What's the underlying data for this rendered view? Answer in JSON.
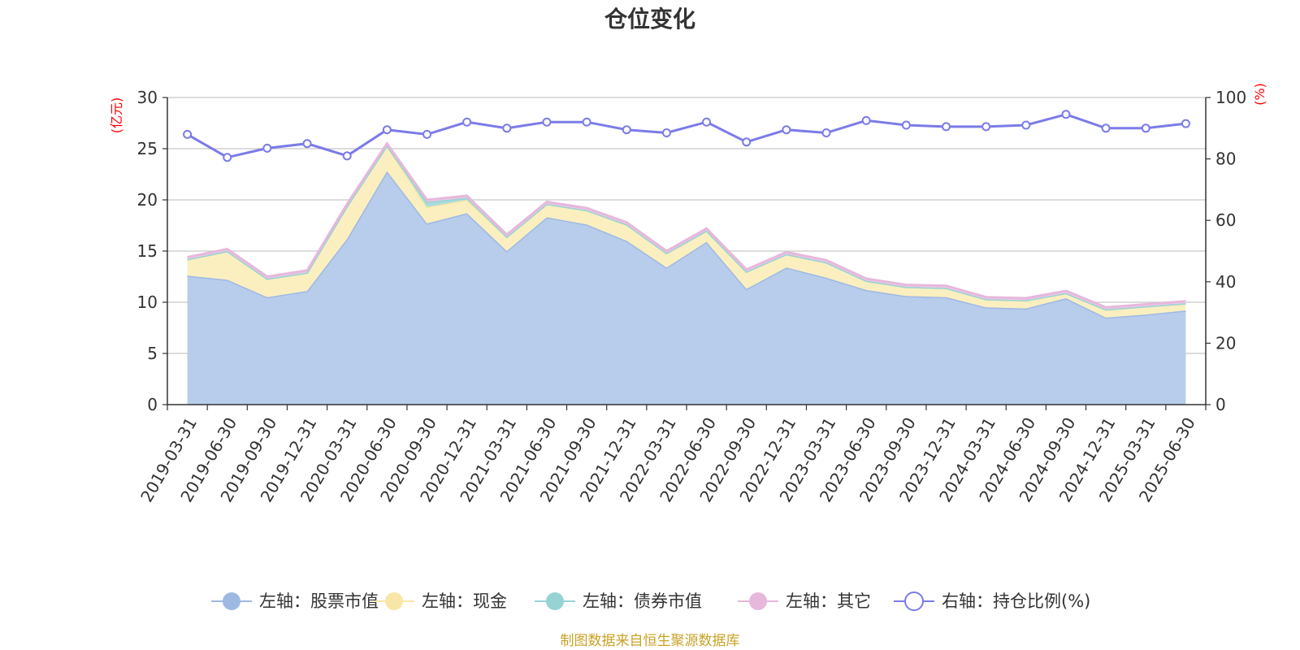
{
  "chart_data": {
    "type": "area",
    "title": "仓位变化",
    "source": "制图数据来自恒生聚源数据库",
    "y_left_unit": "(亿元)",
    "y_right_unit": "(%)",
    "y_left_lim": [
      0,
      30
    ],
    "y_left_ticks": [
      "0",
      "5",
      "10",
      "15",
      "20",
      "25",
      "30"
    ],
    "y_right_lim": [
      0,
      100
    ],
    "y_right_ticks": [
      "0",
      "20",
      "40",
      "60",
      "80",
      "100"
    ],
    "unit_color": "#ff0000",
    "categories": [
      "2019-03-31",
      "2019-06-30",
      "2019-09-30",
      "2019-12-31",
      "2020-03-31",
      "2020-06-30",
      "2020-09-30",
      "2020-12-31",
      "2021-03-31",
      "2021-06-30",
      "2021-09-30",
      "2021-12-31",
      "2022-03-31",
      "2022-06-30",
      "2022-09-30",
      "2022-12-31",
      "2023-03-31",
      "2023-06-30",
      "2023-09-30",
      "2023-12-31",
      "2024-03-31",
      "2024-06-30",
      "2024-09-30",
      "2024-12-31",
      "2025-03-31",
      "2025-06-30"
    ],
    "series": [
      {
        "name": "左轴：股票市值",
        "axis": "left",
        "type": "area",
        "line_color": "#9db9e3",
        "fill_color": "#b8cdeb",
        "values": [
          12.6,
          12.2,
          10.5,
          11.1,
          16.2,
          22.8,
          17.7,
          18.7,
          15.0,
          18.3,
          17.6,
          16.0,
          13.4,
          15.9,
          11.3,
          13.4,
          12.4,
          11.2,
          10.6,
          10.5,
          9.5,
          9.4,
          10.4,
          8.5,
          8.8,
          9.2
        ]
      },
      {
        "name": "左轴：现金",
        "axis": "left",
        "type": "area",
        "line_color": "#f7e6a6",
        "fill_color": "#fbefc0",
        "values": [
          1.6,
          2.8,
          1.8,
          1.8,
          3.2,
          2.5,
          1.6,
          1.3,
          1.4,
          1.3,
          1.4,
          1.6,
          1.4,
          1.1,
          1.7,
          1.3,
          1.5,
          0.9,
          0.9,
          0.9,
          0.8,
          0.8,
          0.5,
          0.8,
          0.8,
          0.7
        ]
      },
      {
        "name": "左轴：债券市值",
        "axis": "left",
        "type": "area",
        "line_color": "#96d3d3",
        "fill_color": "#a8dcdc",
        "values": [
          0,
          0,
          0,
          0,
          0,
          0,
          0.5,
          0.2,
          0,
          0,
          0,
          0,
          0,
          0,
          0,
          0,
          0,
          0,
          0,
          0,
          0,
          0,
          0,
          0,
          0,
          0
        ]
      },
      {
        "name": "左轴：其它",
        "axis": "left",
        "type": "area",
        "line_color": "#e6b8dc",
        "fill_color": "#efcbe6",
        "values": [
          0.2,
          0.2,
          0.2,
          0.2,
          0.2,
          0.2,
          0.2,
          0.2,
          0.2,
          0.2,
          0.2,
          0.2,
          0.2,
          0.2,
          0.2,
          0.2,
          0.2,
          0.2,
          0.2,
          0.2,
          0.2,
          0.2,
          0.2,
          0.2,
          0.2,
          0.2
        ]
      },
      {
        "name": "右轴：持仓比例(%)",
        "axis": "right",
        "type": "line",
        "line_color": "#7b7be8",
        "values": [
          88,
          80.5,
          83.5,
          85,
          81,
          89.5,
          88,
          92,
          90,
          92,
          92,
          89.5,
          88.5,
          92,
          85.5,
          89.5,
          88.5,
          92.5,
          91,
          90.5,
          90.5,
          91,
          94.5,
          90,
          90,
          91.5
        ]
      }
    ],
    "legend_position": "bottom",
    "grid": true
  }
}
